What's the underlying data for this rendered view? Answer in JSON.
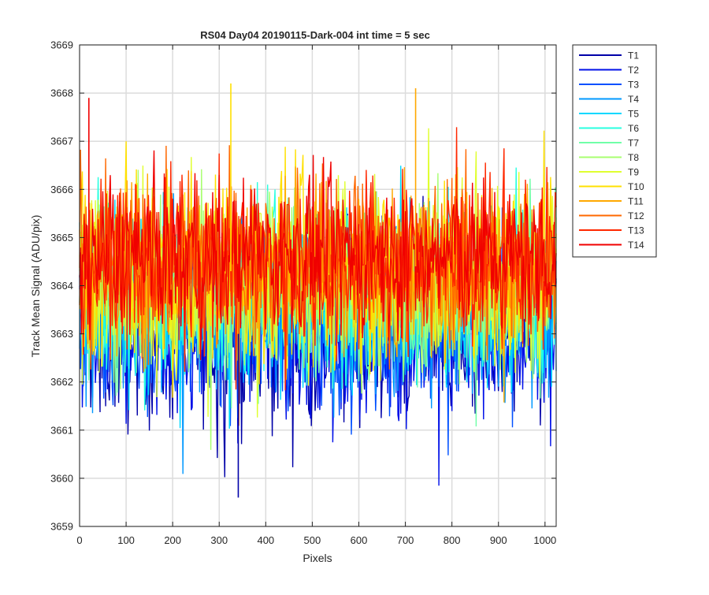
{
  "chart_data": {
    "type": "line",
    "title": "RS04 Day04 20190115-Dark-004 int time = 5 sec",
    "xlabel": "Pixels",
    "ylabel": "Track Mean Signal (ADU/pix)",
    "xlim": [
      0,
      1024
    ],
    "ylim": [
      3659,
      3669
    ],
    "xticks": [
      0,
      100,
      200,
      300,
      400,
      500,
      600,
      700,
      800,
      900,
      1000
    ],
    "yticks": [
      3659,
      3660,
      3661,
      3662,
      3663,
      3664,
      3665,
      3666,
      3667,
      3668,
      3669
    ],
    "grid": true,
    "legend_position": "outside-top-right",
    "series": [
      {
        "name": "T1",
        "color": "#0000a8",
        "mean": 3663.0,
        "spread": 1.1
      },
      {
        "name": "T2",
        "color": "#0010e8",
        "mean": 3663.1,
        "spread": 1.1
      },
      {
        "name": "T3",
        "color": "#0050ff",
        "mean": 3663.3,
        "spread": 1.0
      },
      {
        "name": "T4",
        "color": "#0098ff",
        "mean": 3663.5,
        "spread": 1.0
      },
      {
        "name": "T5",
        "color": "#00d8ff",
        "mean": 3663.7,
        "spread": 1.0
      },
      {
        "name": "T6",
        "color": "#28ffe0",
        "mean": 3663.8,
        "spread": 1.0
      },
      {
        "name": "T7",
        "color": "#70ffa8",
        "mean": 3663.9,
        "spread": 1.0
      },
      {
        "name": "T8",
        "color": "#a8ff70",
        "mean": 3664.0,
        "spread": 1.0
      },
      {
        "name": "T9",
        "color": "#e0ff30",
        "mean": 3664.2,
        "spread": 1.1
      },
      {
        "name": "T10",
        "color": "#ffe000",
        "mean": 3664.3,
        "spread": 1.1
      },
      {
        "name": "T11",
        "color": "#ffa800",
        "mean": 3664.4,
        "spread": 1.0
      },
      {
        "name": "T12",
        "color": "#ff6800",
        "mean": 3664.5,
        "spread": 1.0
      },
      {
        "name": "T13",
        "color": "#ff2800",
        "mean": 3664.5,
        "spread": 1.0
      },
      {
        "name": "T14",
        "color": "#f00000",
        "mean": 3664.6,
        "spread": 0.9
      }
    ],
    "notable_points": [
      {
        "series": "T1",
        "x": 341,
        "y": 3659.6
      },
      {
        "series": "T10",
        "x": 325,
        "y": 3668.2
      },
      {
        "series": "T14",
        "x": 20,
        "y": 3667.9
      },
      {
        "series": "T11",
        "x": 722,
        "y": 3668.1
      }
    ]
  }
}
